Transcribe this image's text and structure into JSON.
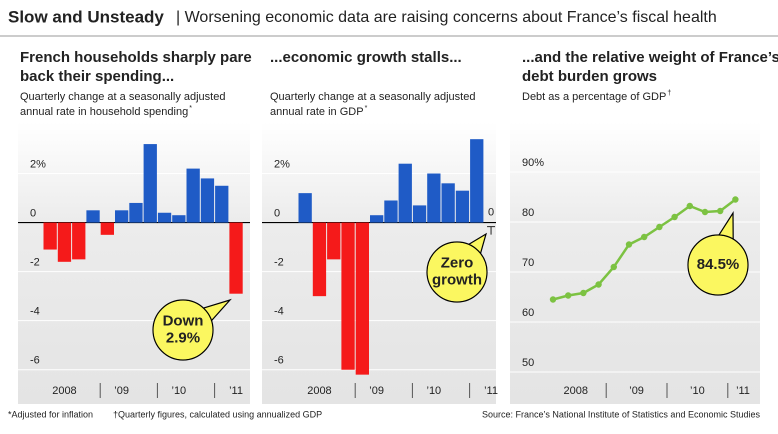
{
  "header": {
    "title": "Slow and Unsteady",
    "subtitle": "| Worsening economic data are raising concerns about France’s fiscal health"
  },
  "chart_data": [
    {
      "type": "bar",
      "title": [
        "French households sharply pare",
        "back their spending..."
      ],
      "subtitle": [
        "Quarterly change at a seasonally adjusted",
        "annual rate in household spending"
      ],
      "subtitle_mark": "*",
      "categories": [
        null,
        "2008",
        null,
        null,
        null,
        "’09",
        null,
        null,
        null,
        "’10",
        null,
        null,
        null,
        "’11"
      ],
      "values": [
        -1.1,
        -1.6,
        -1.5,
        0.5,
        -0.5,
        0.5,
        0.8,
        3.2,
        0.4,
        0.3,
        2.2,
        1.8,
        1.5,
        -2.9
      ],
      "positive_color": "#1f5bc6",
      "negative_color": "#f51a1a",
      "ylim": [
        -6.5,
        4.1
      ],
      "yticks": [
        {
          "value": 2,
          "label": "2%"
        },
        0,
        -2,
        -4,
        -6
      ],
      "grid": true,
      "annotation": [
        "Down",
        "2.9%"
      ]
    },
    {
      "type": "bar",
      "title": [
        "...economic growth stalls..."
      ],
      "subtitle": [
        "Quarterly change at a seasonally adjusted",
        "annual rate in GDP"
      ],
      "subtitle_mark": "*",
      "categories": [
        null,
        "2008",
        null,
        null,
        null,
        "’09",
        null,
        null,
        null,
        "’10",
        null,
        null,
        null,
        "’11"
      ],
      "values": [
        1.2,
        -3.0,
        -1.5,
        -6.0,
        -6.2,
        0.3,
        0.9,
        2.4,
        0.7,
        2.0,
        1.6,
        1.3,
        3.4,
        0
      ],
      "value_labels": [
        null,
        null,
        null,
        null,
        null,
        null,
        null,
        null,
        null,
        null,
        null,
        null,
        null,
        "0"
      ],
      "positive_color": "#1f5bc6",
      "negative_color": "#f51a1a",
      "ylim": [
        -6.5,
        4.1
      ],
      "yticks": [
        {
          "value": 2,
          "label": "2%"
        },
        0,
        -2,
        -4,
        -6
      ],
      "grid": true,
      "annotation": [
        "Zero",
        "growth"
      ]
    },
    {
      "type": "line",
      "title": [
        "...and the relative weight of France’s",
        "debt burden grows"
      ],
      "subtitle": [
        "Debt as a percentage of GDP"
      ],
      "subtitle_mark": "†",
      "categories": [
        null,
        "2008",
        null,
        null,
        null,
        "’09",
        null,
        null,
        null,
        "’10",
        null,
        null,
        "’11"
      ],
      "values": [
        64.5,
        65.3,
        65.8,
        67.5,
        71,
        75.5,
        77,
        79,
        81,
        83.2,
        82,
        82.2,
        84.5
      ],
      "color": "#7cc242",
      "ylim": [
        48,
        100
      ],
      "yticks": [
        {
          "value": 90,
          "label": "90%"
        },
        80,
        70,
        60,
        50
      ],
      "grid": true,
      "annotation": [
        "84.5%"
      ]
    }
  ],
  "footnotes": [
    "*Adjusted for inflation",
    "†Quarterly figures, calculated using annualized GDP"
  ],
  "source": "Source: France’s National Institute of Statistics and Economic Studies"
}
